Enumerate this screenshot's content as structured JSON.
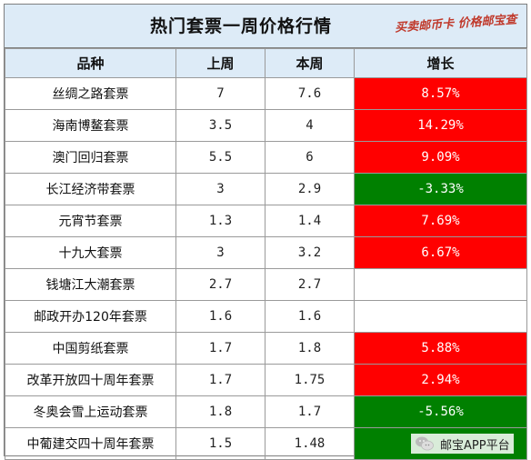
{
  "title": "热门套票一周价格行情",
  "slogan": "买卖邮币卡 价格邮宝查",
  "columns": [
    "品种",
    "上周",
    "本周",
    "增长"
  ],
  "rows": [
    {
      "name": "丝绸之路套票",
      "last": "7",
      "this": "7.6",
      "growth": "8.57%",
      "trend": "up"
    },
    {
      "name": "海南博鳌套票",
      "last": "3.5",
      "this": "4",
      "growth": "14.29%",
      "trend": "up"
    },
    {
      "name": "澳门回归套票",
      "last": "5.5",
      "this": "6",
      "growth": "9.09%",
      "trend": "up"
    },
    {
      "name": "长江经济带套票",
      "last": "3",
      "this": "2.9",
      "growth": "-3.33%",
      "trend": "down"
    },
    {
      "name": "元宵节套票",
      "last": "1.3",
      "this": "1.4",
      "growth": "7.69%",
      "trend": "up"
    },
    {
      "name": "十九大套票",
      "last": "3",
      "this": "3.2",
      "growth": "6.67%",
      "trend": "up"
    },
    {
      "name": "钱塘江大潮套票",
      "last": "2.7",
      "this": "2.7",
      "growth": "",
      "trend": "flat"
    },
    {
      "name": "邮政开办120年套票",
      "last": "1.6",
      "this": "1.6",
      "growth": "",
      "trend": "flat"
    },
    {
      "name": "中国剪纸套票",
      "last": "1.7",
      "this": "1.8",
      "growth": "5.88%",
      "trend": "up"
    },
    {
      "name": "改革开放四十周年套票",
      "last": "1.7",
      "this": "1.75",
      "growth": "2.94%",
      "trend": "up"
    },
    {
      "name": "冬奥会雪上运动套票",
      "last": "1.8",
      "this": "1.7",
      "growth": "-5.56%",
      "trend": "down"
    },
    {
      "name": "中葡建交四十周年套票",
      "last": "1.5",
      "this": "1.48",
      "growth": "",
      "trend": "down"
    }
  ],
  "watermark": {
    "text": "邮宝APP平台",
    "icon": "wechat-icon"
  },
  "colors": {
    "header_bg": "#ddebf7",
    "up": "#ff0000",
    "down": "#008000",
    "slogan": "#c0392b"
  }
}
